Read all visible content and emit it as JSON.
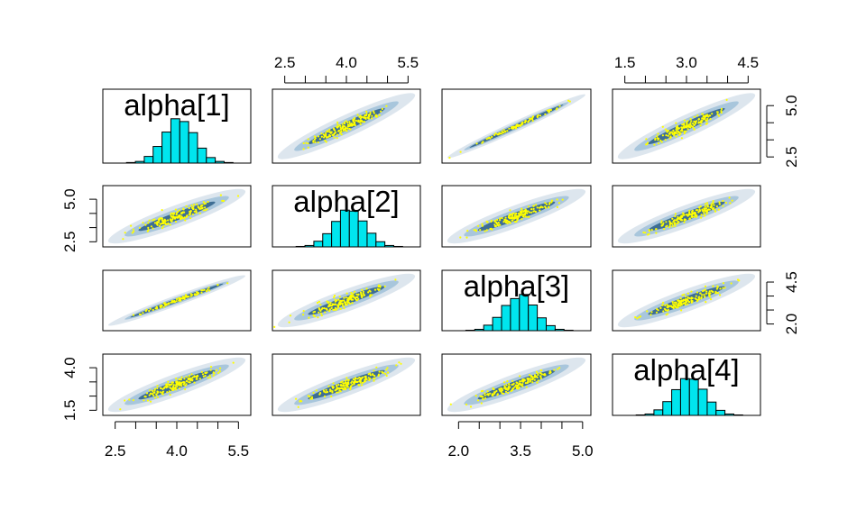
{
  "chart_data": {
    "type": "scatter",
    "variables": [
      "alpha[1]",
      "alpha[2]",
      "alpha[3]",
      "alpha[4]"
    ],
    "ranges": [
      [
        2.2,
        5.8
      ],
      [
        2.2,
        5.8
      ],
      [
        1.6,
        5.2
      ],
      [
        1.2,
        4.8
      ]
    ],
    "axes": {
      "bottom": [
        {
          "col": 0,
          "ticks": [
            2.5,
            4.0,
            5.5
          ],
          "labels": [
            "2.5",
            "4.0",
            "5.5"
          ]
        },
        {
          "col": 2,
          "ticks": [
            2.0,
            3.5,
            5.0
          ],
          "labels": [
            "2.0",
            "3.5",
            "5.0"
          ]
        }
      ],
      "top": [
        {
          "col": 1,
          "ticks": [
            2.5,
            4.0,
            5.5
          ],
          "labels": [
            "2.5",
            "4.0",
            "5.5"
          ]
        },
        {
          "col": 3,
          "ticks": [
            1.5,
            3.0,
            4.5
          ],
          "labels": [
            "1.5",
            "3.0",
            "4.5"
          ]
        }
      ],
      "left": [
        {
          "row": 1,
          "ticks": [
            2.5,
            5.0
          ],
          "labels": [
            "2.5",
            "5.0"
          ]
        },
        {
          "row": 3,
          "ticks": [
            1.5,
            4.0
          ],
          "labels": [
            "1.5",
            "4.0"
          ]
        }
      ],
      "right": [
        {
          "row": 0,
          "ticks": [
            2.5,
            5.0
          ],
          "labels": [
            "2.5",
            "5.0"
          ]
        },
        {
          "row": 2,
          "ticks": [
            2.0,
            4.5
          ],
          "labels": [
            "2.0",
            "4.5"
          ]
        }
      ]
    },
    "histograms": [
      {
        "var": "alpha[1]",
        "counts": [
          1,
          3,
          12,
          30,
          56,
          80,
          75,
          55,
          27,
          10,
          3,
          1
        ]
      },
      {
        "var": "alpha[2]",
        "counts": [
          1,
          3,
          12,
          28,
          54,
          78,
          76,
          55,
          29,
          11,
          3,
          1
        ]
      },
      {
        "var": "alpha[3]",
        "counts": [
          1,
          3,
          12,
          29,
          55,
          70,
          79,
          56,
          28,
          11,
          3,
          1
        ]
      },
      {
        "var": "alpha[4]",
        "counts": [
          1,
          3,
          12,
          30,
          56,
          80,
          79,
          57,
          29,
          11,
          3,
          1
        ]
      }
    ],
    "correlation_tight_pair": [
      "alpha[1]",
      "alpha[3]"
    ],
    "colors": {
      "histogram_fill": "#00e5ee",
      "points": "#ffff00",
      "density_light": "#dde6ee",
      "density_mid": "#a8c6dc",
      "density_dark": "#3e6e94",
      "frame": "#000000"
    }
  }
}
